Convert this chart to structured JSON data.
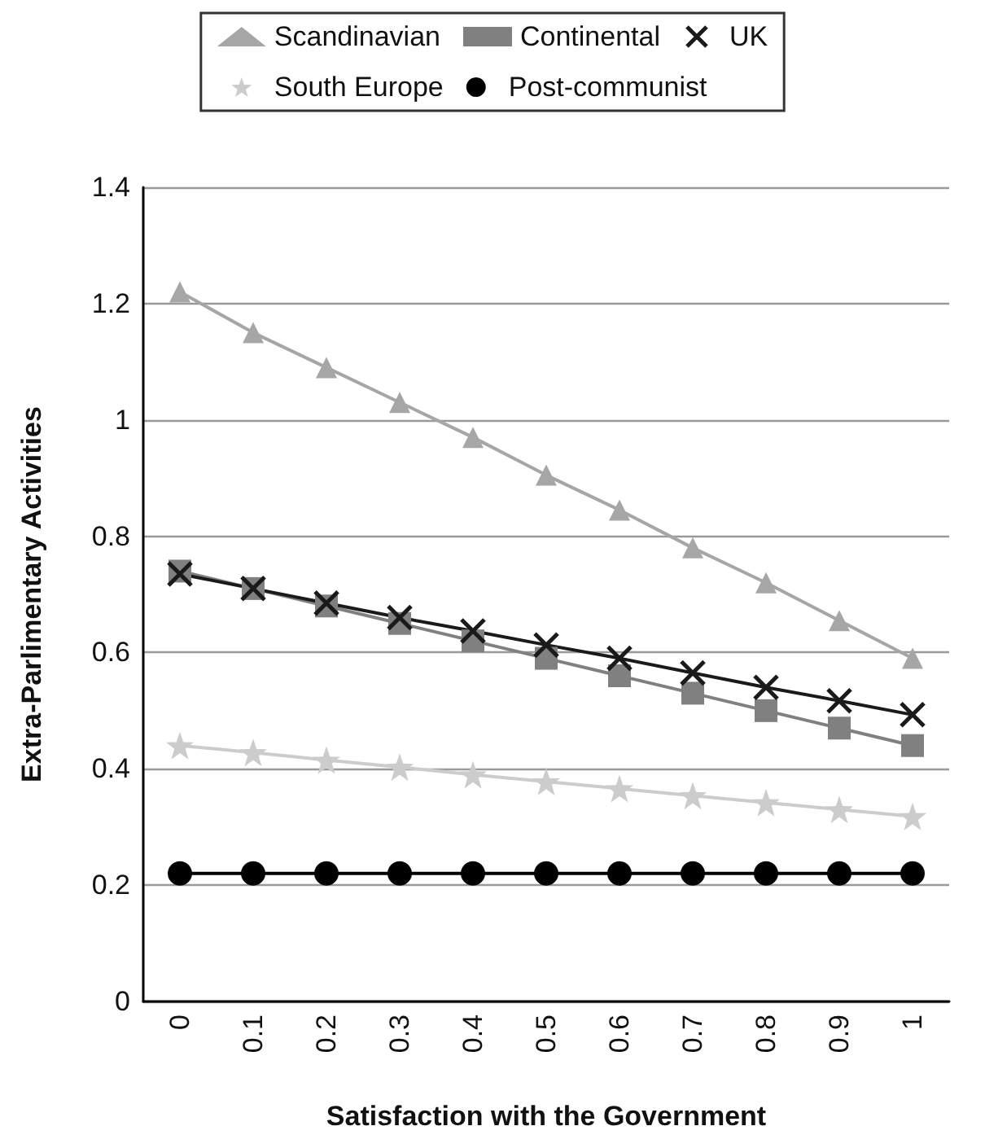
{
  "chart_data": {
    "type": "line",
    "xlabel": "Satisfaction with the Government",
    "ylabel": "Extra-Parlimentary Activities",
    "categories": [
      "0",
      "0.1",
      "0.2",
      "0.3",
      "0.4",
      "0.5",
      "0.6",
      "0.7",
      "0.8",
      "0.9",
      "1"
    ],
    "series": [
      {
        "name": "Scandinavian",
        "color": "#a6a6a6",
        "marker": "triangle",
        "values": [
          1.22,
          1.15,
          1.09,
          1.03,
          0.97,
          0.905,
          0.845,
          0.78,
          0.72,
          0.655,
          0.59
        ]
      },
      {
        "name": "Continental",
        "color": "#808080",
        "marker": "square",
        "values": [
          0.74,
          0.71,
          0.68,
          0.65,
          0.62,
          0.59,
          0.56,
          0.53,
          0.5,
          0.47,
          0.44
        ]
      },
      {
        "name": "UK",
        "color": "#1a1a1a",
        "marker": "cross",
        "values": [
          0.735,
          0.71,
          0.685,
          0.66,
          0.637,
          0.613,
          0.59,
          0.565,
          0.54,
          0.517,
          0.493
        ]
      },
      {
        "name": "South Europe",
        "color": "#cccccc",
        "marker": "star",
        "values": [
          0.44,
          0.428,
          0.415,
          0.403,
          0.39,
          0.378,
          0.366,
          0.354,
          0.342,
          0.33,
          0.318
        ]
      },
      {
        "name": "Post-communist",
        "color": "#000000",
        "marker": "circle",
        "values": [
          0.22,
          0.22,
          0.22,
          0.22,
          0.22,
          0.22,
          0.22,
          0.22,
          0.22,
          0.22,
          0.22
        ]
      }
    ],
    "ylim": [
      0,
      1.4
    ],
    "yticks": [
      0,
      0.2,
      0.4,
      0.6,
      0.8,
      1,
      1.2,
      1.4
    ],
    "grid": "y",
    "legend": "top",
    "line_style": "solid"
  }
}
